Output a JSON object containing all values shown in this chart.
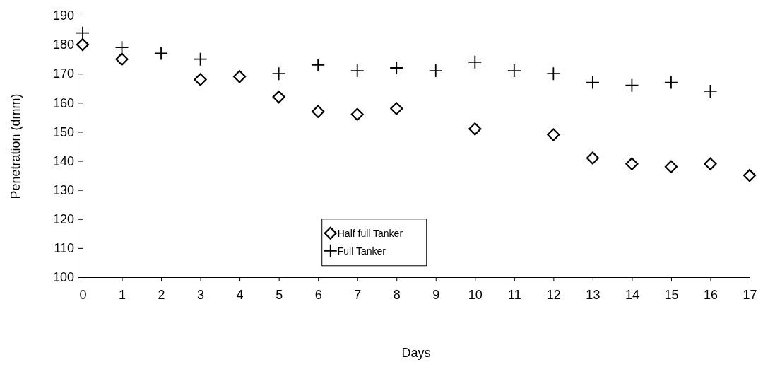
{
  "chart_data": {
    "type": "scatter",
    "xlabel": "Days",
    "ylabel": "Penetration (dmm)",
    "xlim": [
      0,
      17
    ],
    "xticks": [
      0,
      1,
      2,
      3,
      4,
      5,
      6,
      7,
      8,
      9,
      10,
      11,
      12,
      13,
      14,
      15,
      16,
      17
    ],
    "ylim": [
      100,
      190
    ],
    "yticks": [
      100,
      110,
      120,
      130,
      140,
      150,
      160,
      170,
      180,
      190
    ],
    "grid": false,
    "legend": "bottom",
    "series": [
      {
        "name": "Half full Tanker",
        "color": "#000000",
        "marker": "diamond",
        "x": [
          0,
          1,
          3,
          4,
          5,
          6,
          7,
          8,
          10,
          12,
          13,
          14,
          15,
          16,
          17
        ],
        "values": [
          180,
          175,
          168,
          169,
          162,
          157,
          156,
          158,
          151,
          149,
          141,
          139,
          138,
          139,
          135
        ]
      },
      {
        "name": "Full Tanker",
        "color": "#000000",
        "marker": "cross",
        "x": [
          0,
          1,
          2,
          3,
          5,
          6,
          7,
          8,
          9,
          10,
          11,
          12,
          13,
          14,
          15,
          16
        ],
        "values": [
          184,
          179,
          177,
          175,
          170,
          173,
          171,
          172,
          171,
          174,
          171,
          170,
          167,
          166,
          167,
          164
        ]
      }
    ]
  }
}
